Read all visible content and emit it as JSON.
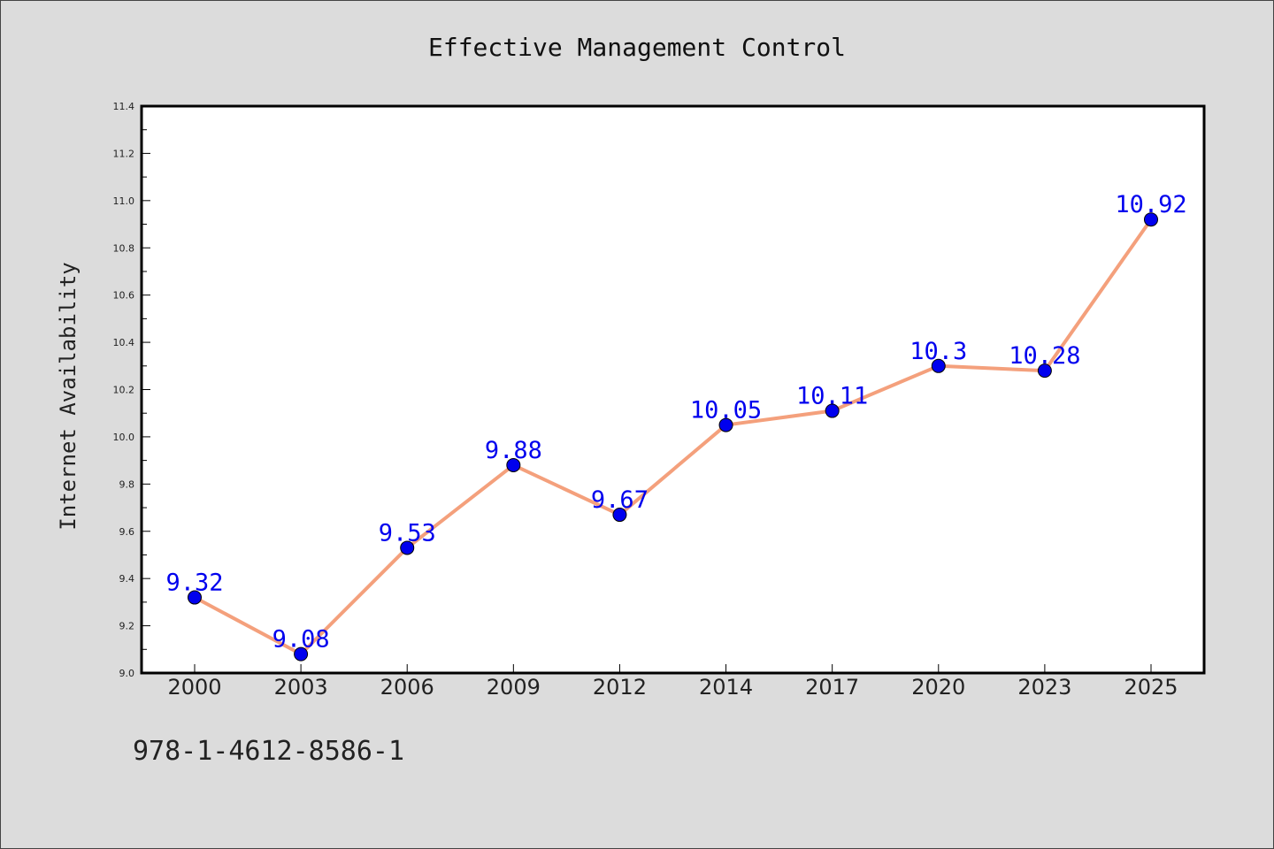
{
  "chart_data": {
    "type": "line",
    "title": "Effective Management Control",
    "xlabel": "",
    "ylabel": "Internet Availability",
    "categories": [
      "2000",
      "2003",
      "2006",
      "2009",
      "2012",
      "2014",
      "2017",
      "2020",
      "2023",
      "2025"
    ],
    "series": [
      {
        "values": [
          9.32,
          9.08,
          9.53,
          9.88,
          9.67,
          10.05,
          10.11,
          10.3,
          10.28,
          10.92
        ],
        "labels": [
          "9.32",
          "9.08",
          "9.53",
          "9.88",
          "9.67",
          "10.05",
          "10.11",
          "10.3",
          "10.28",
          "10.92"
        ]
      }
    ],
    "ylim": [
      9.0,
      11.4
    ],
    "yticks": [
      "9.0",
      "9.2",
      "9.4",
      "9.6",
      "9.8",
      "10.0",
      "10.2",
      "10.4",
      "10.6",
      "10.8",
      "11.0",
      "11.2",
      "11.4"
    ],
    "grid": false,
    "legend": "none"
  },
  "colors": {
    "line": "#f4a07c",
    "marker": "#0000ee",
    "label": "#0000ee",
    "background": "#dcdcdc",
    "plot_background": "#ffffff"
  },
  "footer": {
    "isbn": "978-1-4612-8586-1"
  }
}
